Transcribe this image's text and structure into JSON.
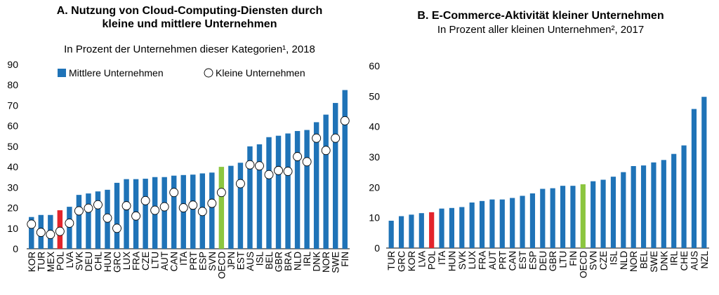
{
  "chart_data": [
    {
      "type": "bar",
      "title": "A. Nutzung von Cloud-Computing-Diensten durch kleine und mittlere Unternehmen",
      "title_lines": [
        "A. Nutzung von Cloud-Computing-Diensten durch",
        "kleine und mittlere Unternehmen"
      ],
      "subtitle": "In Prozent der Unternehmen dieser Kategorien¹, 2018",
      "ylim": [
        0,
        90
      ],
      "yticks": [
        0,
        10,
        20,
        30,
        40,
        50,
        60,
        70,
        80,
        90
      ],
      "legend_position": "top",
      "legend": [
        "Mittlere Unternehmen",
        "Kleine Unternehmen"
      ],
      "categories": [
        "KOR",
        "TUR",
        "MEX",
        "POL",
        "LVA",
        "SVK",
        "DEU",
        "CHL",
        "HUN",
        "GRC",
        "LUX",
        "FRA",
        "CZE",
        "LTU",
        "AUT",
        "CAN",
        "ITA",
        "PRT",
        "ESP",
        "SVN",
        "OECD",
        "JPN",
        "EST",
        "AUS",
        "ISL",
        "BEL",
        "GBR",
        "BRA",
        "NLD",
        "IRL",
        "DNK",
        "NOR",
        "SWE",
        "FIN"
      ],
      "series": [
        {
          "name": "Mittlere Unternehmen",
          "marker": "bar",
          "values": [
            15.5,
            16.5,
            16.5,
            18.8,
            20.5,
            26.3,
            27,
            28,
            28.8,
            32.2,
            34,
            34,
            34.2,
            35,
            35,
            35.7,
            36,
            36.2,
            36.8,
            37.2,
            40,
            40.5,
            42,
            50,
            51,
            54.5,
            55.2,
            56.3,
            57.5,
            58,
            61.8,
            65.5,
            71.2,
            77.5
          ]
        },
        {
          "name": "Kleine Unternehmen",
          "marker": "circle",
          "values": [
            12,
            8,
            7,
            8.5,
            12.5,
            18.5,
            19.8,
            21.5,
            15,
            10,
            21,
            16,
            23.5,
            18.8,
            20.5,
            27.5,
            20,
            21.3,
            18.2,
            22.2,
            27.5,
            null,
            31.8,
            41,
            40.5,
            36.2,
            38.2,
            37.8,
            45,
            42.5,
            54,
            48,
            54,
            62.5
          ]
        }
      ],
      "highlight": {
        "POL": "#e3242b",
        "OECD": "#8cc63f"
      }
    },
    {
      "type": "bar",
      "title": "B. E-Commerce-Aktivität kleiner Unternehmen",
      "subtitle": "In Prozent aller kleinen Unternehmen², 2017",
      "ylim": [
        0,
        60
      ],
      "yticks": [
        0,
        10,
        20,
        30,
        40,
        50,
        60
      ],
      "categories": [
        "TUR",
        "GRC",
        "KOR",
        "LVA",
        "POL",
        "ITA",
        "HUN",
        "SVK",
        "LUX",
        "FRA",
        "AUT",
        "PRT",
        "CAN",
        "EST",
        "ESP",
        "DEU",
        "GBR",
        "LTU",
        "FIN",
        "OECD",
        "SVN",
        "CZE",
        "ISL",
        "NLD",
        "NOR",
        "BEL",
        "SWE",
        "DNK",
        "IRL",
        "CHE",
        "AUS",
        "NZL"
      ],
      "values": [
        9,
        10.5,
        11,
        11.5,
        11.8,
        13,
        13.2,
        13.5,
        15,
        15.5,
        16,
        16,
        16.5,
        17.2,
        18,
        19.5,
        19.7,
        20.5,
        20.5,
        21,
        22,
        22.5,
        23.5,
        25,
        27,
        27.2,
        28.2,
        29,
        31,
        33.8,
        45.8,
        49.8
      ],
      "highlight": {
        "POL": "#e3242b",
        "OECD": "#8cc63f"
      }
    }
  ],
  "colors": {
    "bar": "#1f73b7",
    "highlight_red": "#e3242b",
    "highlight_green": "#8cc63f",
    "marker_fill": "#ffffff"
  }
}
